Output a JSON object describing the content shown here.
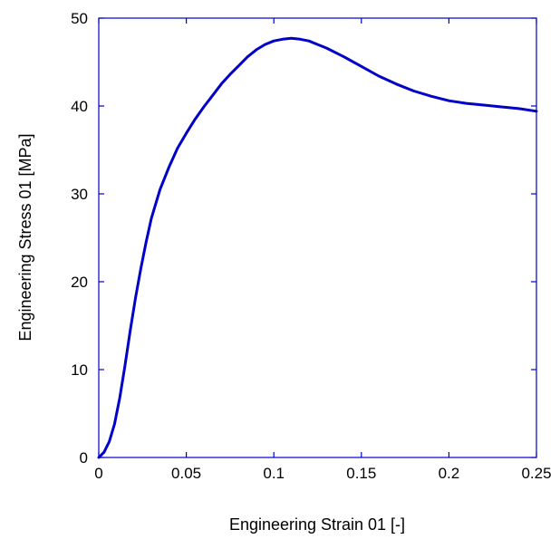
{
  "chart_data": {
    "type": "line",
    "title": "",
    "xlabel": "Engineering Strain 01 [-]",
    "ylabel": "Engineering Stress 01 [MPa]",
    "xlim": [
      0,
      0.25
    ],
    "ylim": [
      0,
      50
    ],
    "xticks": [
      0,
      0.05,
      0.1,
      0.15,
      0.2,
      0.25
    ],
    "xtick_labels": [
      "0",
      "0.05",
      "0.1",
      "0.15",
      "0.2",
      "0.25"
    ],
    "yticks": [
      0,
      10,
      20,
      30,
      40,
      50
    ],
    "ytick_labels": [
      "0",
      "10",
      "20",
      "30",
      "40",
      "50"
    ],
    "grid": false,
    "line_color": "#0000c8",
    "axis_color": "#0000c8",
    "series": [
      {
        "x": [
          0,
          0.003,
          0.006,
          0.009,
          0.012,
          0.015,
          0.018,
          0.021,
          0.024,
          0.027,
          0.03,
          0.035,
          0.04,
          0.045,
          0.05,
          0.055,
          0.06,
          0.065,
          0.07,
          0.075,
          0.08,
          0.085,
          0.09,
          0.095,
          0.1,
          0.105,
          0.11,
          0.115,
          0.12,
          0.125,
          0.13,
          0.14,
          0.15,
          0.16,
          0.17,
          0.18,
          0.19,
          0.2,
          0.21,
          0.22,
          0.23,
          0.24,
          0.25
        ],
        "y": [
          0,
          0.6,
          1.8,
          3.8,
          6.8,
          10.5,
          14.5,
          18.2,
          21.5,
          24.5,
          27.2,
          30.5,
          33.0,
          35.2,
          36.9,
          38.5,
          39.9,
          41.2,
          42.5,
          43.6,
          44.6,
          45.6,
          46.4,
          47.0,
          47.4,
          47.6,
          47.7,
          47.6,
          47.4,
          47.0,
          46.6,
          45.6,
          44.5,
          43.4,
          42.5,
          41.7,
          41.1,
          40.6,
          40.3,
          40.1,
          39.9,
          39.7,
          39.4
        ]
      }
    ]
  }
}
